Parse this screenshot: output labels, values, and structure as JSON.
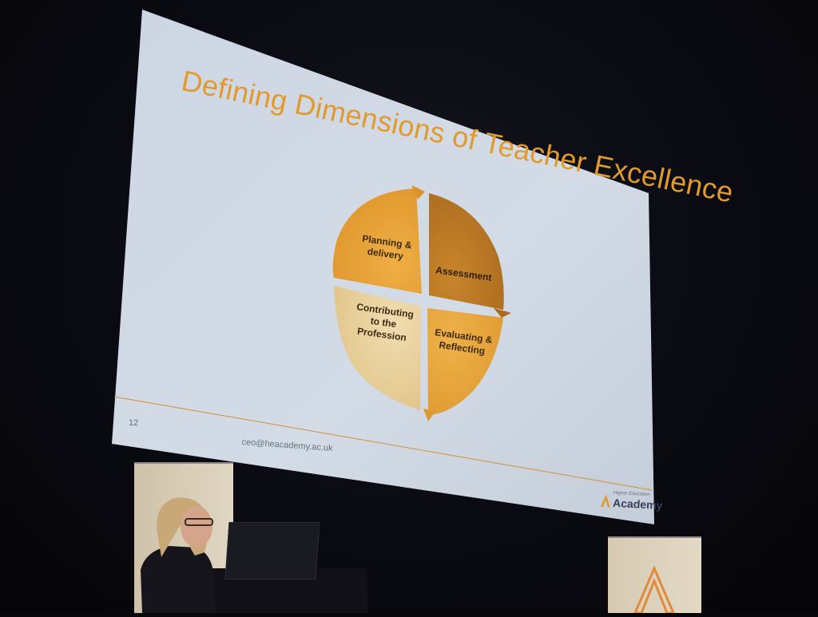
{
  "slide": {
    "title": "Defining Dimensions of Teacher Excellence",
    "page_number": "12",
    "email": "ceo@heacademy.ac.uk",
    "brand_top": "Higher Education",
    "brand_main": "Academy"
  },
  "cycle": {
    "segments": [
      {
        "label_lines": [
          "Planning &",
          "delivery"
        ]
      },
      {
        "label_lines": [
          "Assessment"
        ]
      },
      {
        "label_lines": [
          "Evaluating &",
          "Reflecting"
        ]
      },
      {
        "label_lines": [
          "Contributing",
          "to the",
          "Profession"
        ]
      }
    ]
  },
  "colors": {
    "title": "#e29a2c",
    "segment_planning": "#e8a235",
    "segment_assessment": "#bd7a25",
    "segment_evaluating": "#e6a433",
    "segment_contributing": "#e8cf9c",
    "screen": "#c9d3e0"
  }
}
